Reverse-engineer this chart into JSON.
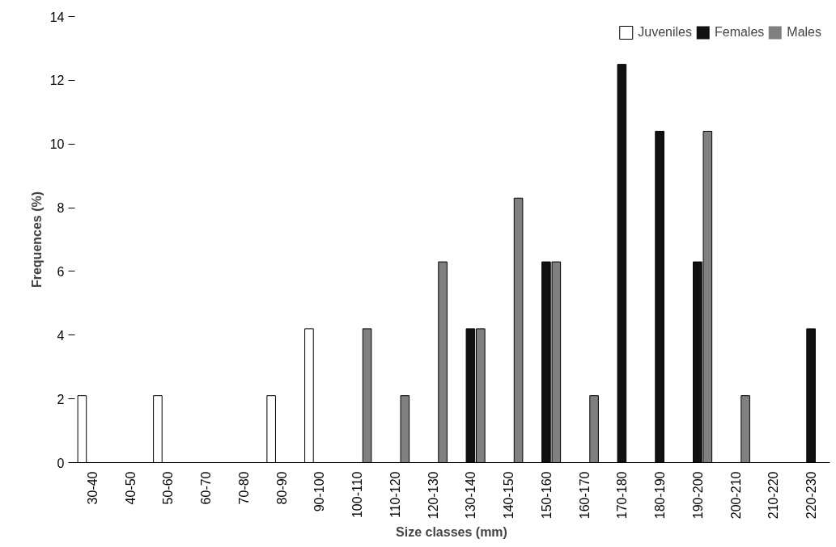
{
  "chart_data": {
    "type": "bar",
    "xlabel": "Size classes (mm)",
    "ylabel": "Frequences (%)",
    "categories": [
      "30-40",
      "40-50",
      "50-60",
      "60-70",
      "70-80",
      "80-90",
      "90-100",
      "100-110",
      "110-120",
      "120-130",
      "130-140",
      "140-150",
      "150-160",
      "160-170",
      "170-180",
      "180-190",
      "190-200",
      "200-210",
      "210-220",
      "220-230"
    ],
    "series": [
      {
        "name": "Juveniles",
        "color": "#ffffff",
        "values": [
          2.1,
          0,
          2.1,
          0,
          0,
          2.1,
          4.2,
          0,
          0,
          0,
          0,
          0,
          0,
          0,
          0,
          0,
          0,
          0,
          0,
          0
        ]
      },
      {
        "name": "Females",
        "color": "#111111",
        "values": [
          0,
          0,
          0,
          0,
          0,
          0,
          0,
          0,
          0,
          0,
          4.2,
          0,
          6.3,
          0,
          12.5,
          10.4,
          6.3,
          0,
          0,
          4.2
        ]
      },
      {
        "name": "Males",
        "color": "#808080",
        "values": [
          0,
          0,
          0,
          0,
          0,
          0,
          0,
          4.2,
          2.1,
          6.3,
          4.2,
          8.3,
          6.3,
          2.1,
          0,
          0,
          10.4,
          2.1,
          0,
          0
        ]
      }
    ],
    "ylim": [
      0,
      14
    ],
    "yticks": [
      0,
      2,
      4,
      6,
      8,
      10,
      12,
      14
    ],
    "grid": false,
    "legend": "top right"
  }
}
